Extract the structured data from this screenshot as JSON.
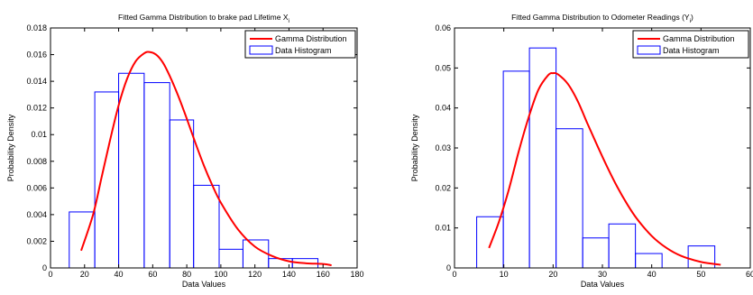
{
  "chart_data": [
    {
      "type": "bar",
      "title": "Fitted Gamma Distribution to brake pad Lifetime X",
      "title_subscript": "i",
      "xlabel": "Data Values",
      "ylabel": "Probability Density",
      "xlim": [
        0,
        180
      ],
      "ylim": [
        0,
        0.018
      ],
      "xticks": [
        0,
        20,
        40,
        60,
        80,
        100,
        120,
        140,
        160,
        180
      ],
      "yticks": [
        0,
        0.002,
        0.004,
        0.006,
        0.008,
        0.01,
        0.012,
        0.014,
        0.016,
        0.018
      ],
      "xtick_labels": [
        "0",
        "20",
        "40",
        "60",
        "80",
        "100",
        "120",
        "140",
        "160",
        "180"
      ],
      "ytick_labels": [
        "0",
        "0.002",
        "0.004",
        "0.006",
        "0.008",
        "0.01",
        "0.012",
        "0.014",
        "0.016",
        "0.018"
      ],
      "grid": false,
      "legend_position": "top-right",
      "series": [
        {
          "name": "Gamma Distribution",
          "kind": "line",
          "color": "#ff0000",
          "x": [
            18,
            25,
            30,
            35,
            40,
            45,
            50,
            55,
            58,
            62,
            66,
            70,
            75,
            80,
            85,
            90,
            95,
            100,
            110,
            120,
            130,
            140,
            150,
            160,
            165
          ],
          "y": [
            0.0013,
            0.004,
            0.0068,
            0.0096,
            0.0122,
            0.0142,
            0.0155,
            0.0161,
            0.0162,
            0.016,
            0.0154,
            0.0144,
            0.0129,
            0.0112,
            0.0094,
            0.0077,
            0.0062,
            0.0049,
            0.0029,
            0.0016,
            0.0009,
            0.0005,
            0.00035,
            0.0003,
            0.0002
          ]
        },
        {
          "name": "Data Histogram",
          "kind": "histogram",
          "color": "#0000ff",
          "bins": [
            {
              "x0": 11,
              "x1": 26,
              "value": 0.0042
            },
            {
              "x0": 26,
              "x1": 40,
              "value": 0.0132
            },
            {
              "x0": 40,
              "x1": 55,
              "value": 0.0146
            },
            {
              "x0": 55,
              "x1": 70,
              "value": 0.0139
            },
            {
              "x0": 70,
              "x1": 84,
              "value": 0.0111
            },
            {
              "x0": 84,
              "x1": 99,
              "value": 0.0062
            },
            {
              "x0": 99,
              "x1": 113,
              "value": 0.0014
            },
            {
              "x0": 113,
              "x1": 128,
              "value": 0.0021
            },
            {
              "x0": 128,
              "x1": 142,
              "value": 0.0007
            },
            {
              "x0": 142,
              "x1": 157,
              "value": 0.0007
            }
          ]
        }
      ]
    },
    {
      "type": "bar",
      "title": "Fitted Gamma Distribution to Odometer Readings  (Y",
      "title_subscript": "i",
      "title_suffix": ")",
      "xlabel": "Data Values",
      "ylabel": "Probability Density",
      "xlim": [
        0,
        60
      ],
      "ylim": [
        0,
        0.06
      ],
      "xticks": [
        0,
        10,
        20,
        30,
        40,
        50,
        60
      ],
      "yticks": [
        0,
        0.01,
        0.02,
        0.03,
        0.04,
        0.05,
        0.06
      ],
      "xtick_labels": [
        "0",
        "10",
        "20",
        "30",
        "40",
        "50",
        "60"
      ],
      "ytick_labels": [
        "0",
        "0.01",
        "0.02",
        "0.03",
        "0.04",
        "0.05",
        "0.06"
      ],
      "grid": false,
      "legend_position": "top-right",
      "series": [
        {
          "name": "Gamma Distribution",
          "kind": "line",
          "color": "#ff0000",
          "x": [
            7,
            9,
            11,
            13,
            15,
            17,
            19,
            20,
            21,
            23,
            25,
            27,
            29,
            31,
            33,
            35,
            37,
            40,
            43,
            46,
            50,
            54
          ],
          "y": [
            0.005,
            0.0115,
            0.0195,
            0.029,
            0.0375,
            0.0445,
            0.0482,
            0.0487,
            0.0484,
            0.046,
            0.0417,
            0.036,
            0.0305,
            0.0252,
            0.0203,
            0.016,
            0.0123,
            0.008,
            0.005,
            0.003,
            0.0015,
            0.0008
          ]
        },
        {
          "name": "Data Histogram",
          "kind": "histogram",
          "color": "#0000ff",
          "bins": [
            {
              "x0": 4.5,
              "x1": 9.9,
              "value": 0.0128
            },
            {
              "x0": 9.9,
              "x1": 15.2,
              "value": 0.0492
            },
            {
              "x0": 15.2,
              "x1": 20.6,
              "value": 0.055
            },
            {
              "x0": 20.6,
              "x1": 26.0,
              "value": 0.0348
            },
            {
              "x0": 26.0,
              "x1": 31.3,
              "value": 0.0075
            },
            {
              "x0": 31.3,
              "x1": 36.7,
              "value": 0.011
            },
            {
              "x0": 36.7,
              "x1": 42.1,
              "value": 0.0036
            },
            {
              "x0": 47.4,
              "x1": 52.8,
              "value": 0.0055
            }
          ]
        }
      ]
    }
  ]
}
